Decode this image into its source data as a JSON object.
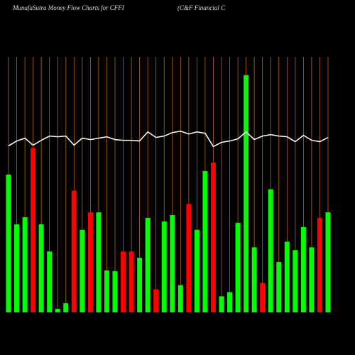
{
  "chart_data": {
    "type": "bar",
    "title": "MunafaSutra  Money Flow  Charts for CFFI",
    "subtitle": "(C&F Financial C",
    "categories": [
      null,
      null,
      null,
      null,
      null,
      null,
      null,
      null,
      null,
      null,
      null,
      null,
      null,
      null,
      null,
      null,
      null,
      null,
      null,
      null,
      null,
      null,
      null,
      null,
      null,
      null,
      null,
      null,
      null,
      null,
      null,
      null,
      null,
      null,
      null,
      null,
      null,
      null,
      null,
      null
    ],
    "ylim": [
      0,
      345
    ],
    "series": [
      {
        "values": [
          197,
          126,
          136,
          235,
          126,
          87,
          5,
          13,
          174,
          118,
          143,
          143,
          60,
          59,
          87,
          87,
          78,
          135,
          33,
          130,
          139,
          39,
          155,
          118,
          202,
          214,
          23,
          29,
          128,
          339,
          93,
          42,
          176,
          72,
          101,
          89,
          122,
          93,
          135,
          143
        ],
        "colors": [
          "#00ff00",
          "#00ff00",
          "#00ff00",
          "#ff0000",
          "#00ff00",
          "#00ff00",
          "#00ff00",
          "#00ff00",
          "#ff0000",
          "#00ff00",
          "#ff0000",
          "#00ff00",
          "#00ff00",
          "#00ff00",
          "#ff0000",
          "#ff0000",
          "#00ff00",
          "#00ff00",
          "#ff0000",
          "#00ff00",
          "#00ff00",
          "#00ff00",
          "#ff0000",
          "#00ff00",
          "#00ff00",
          "#ff0000",
          "#00ff00",
          "#00ff00",
          "#00ff00",
          "#00ff00",
          "#00ff00",
          "#ff0000",
          "#00ff00",
          "#00ff00",
          "#00ff00",
          "#00ff00",
          "#00ff00",
          "#00ff00",
          "#ff0000",
          "#00ff00"
        ]
      },
      {
        "type": "line",
        "color": "#ffffff",
        "values": [
          238,
          245,
          249,
          239,
          246,
          252,
          251,
          252,
          239,
          249,
          247,
          249,
          251,
          247,
          246,
          246,
          245,
          258,
          250,
          252,
          257,
          259,
          255,
          258,
          256,
          237,
          243,
          245,
          248,
          258,
          247,
          252,
          254,
          252,
          251,
          244,
          253,
          246,
          244,
          250
        ]
      }
    ],
    "grid_color": "#b8650a"
  }
}
